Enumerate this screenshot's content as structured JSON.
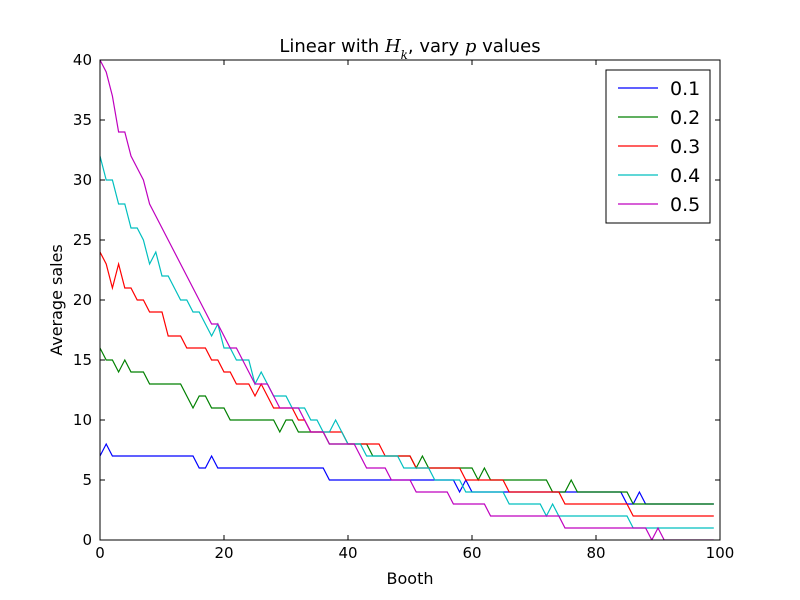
{
  "chart_data": {
    "type": "line",
    "title": {
      "prefix": "Linear with ",
      "var1": "H",
      "var1_sub": "k",
      "middle": ", vary ",
      "var2": "p",
      "suffix": " values"
    },
    "xlabel": "Booth",
    "ylabel": "Average sales",
    "xlim": [
      0,
      100
    ],
    "ylim": [
      0,
      40
    ],
    "xticks": [
      0,
      20,
      40,
      60,
      80,
      100
    ],
    "yticks": [
      0,
      5,
      10,
      15,
      20,
      25,
      30,
      35,
      40
    ],
    "grid": false,
    "legend": {
      "placement": "top-right"
    },
    "x": [
      0,
      1,
      2,
      3,
      4,
      5,
      6,
      7,
      8,
      9,
      10,
      11,
      12,
      13,
      14,
      15,
      16,
      17,
      18,
      19,
      20,
      21,
      22,
      23,
      24,
      25,
      26,
      27,
      28,
      29,
      30,
      31,
      32,
      33,
      34,
      35,
      36,
      37,
      38,
      39,
      40,
      41,
      42,
      43,
      44,
      45,
      46,
      47,
      48,
      49,
      50,
      51,
      52,
      53,
      54,
      55,
      56,
      57,
      58,
      59,
      60,
      61,
      62,
      63,
      64,
      65,
      66,
      67,
      68,
      69,
      70,
      71,
      72,
      73,
      74,
      75,
      76,
      77,
      78,
      79,
      80,
      81,
      82,
      83,
      84,
      85,
      86,
      87,
      88,
      89,
      90,
      91,
      92,
      93,
      94,
      95,
      96,
      97,
      98,
      99
    ],
    "series": [
      {
        "name": "0.1",
        "color": "#0000ff",
        "values": [
          7,
          8,
          7,
          7,
          7,
          7,
          7,
          7,
          7,
          7,
          7,
          7,
          7,
          7,
          7,
          7,
          6,
          6,
          7,
          6,
          6,
          6,
          6,
          6,
          6,
          6,
          6,
          6,
          6,
          6,
          6,
          6,
          6,
          6,
          6,
          6,
          6,
          5,
          5,
          5,
          5,
          5,
          5,
          5,
          5,
          5,
          5,
          5,
          5,
          5,
          5,
          5,
          5,
          5,
          5,
          5,
          5,
          5,
          4,
          5,
          4,
          4,
          4,
          4,
          4,
          4,
          4,
          4,
          4,
          4,
          4,
          4,
          4,
          4,
          4,
          4,
          4,
          4,
          4,
          4,
          4,
          4,
          4,
          4,
          4,
          3,
          3,
          4,
          3,
          3,
          3,
          3,
          3,
          3,
          3,
          3,
          3,
          3,
          3,
          3
        ]
      },
      {
        "name": "0.2",
        "color": "#008000",
        "values": [
          16,
          15,
          15,
          14,
          15,
          14,
          14,
          14,
          13,
          13,
          13,
          13,
          13,
          13,
          12,
          11,
          12,
          12,
          11,
          11,
          11,
          10,
          10,
          10,
          10,
          10,
          10,
          10,
          10,
          9,
          10,
          10,
          9,
          9,
          9,
          9,
          9,
          8,
          8,
          8,
          8,
          8,
          8,
          8,
          7,
          7,
          7,
          7,
          7,
          7,
          7,
          6,
          7,
          6,
          6,
          6,
          6,
          6,
          6,
          6,
          6,
          5,
          6,
          5,
          5,
          5,
          5,
          5,
          5,
          5,
          5,
          5,
          5,
          4,
          4,
          4,
          5,
          4,
          4,
          4,
          4,
          4,
          4,
          4,
          4,
          4,
          3,
          3,
          3,
          3,
          3,
          3,
          3,
          3,
          3,
          3,
          3,
          3,
          3,
          3
        ]
      },
      {
        "name": "0.3",
        "color": "#ff0000",
        "values": [
          24,
          23,
          21,
          23,
          21,
          21,
          20,
          20,
          19,
          19,
          19,
          17,
          17,
          17,
          16,
          16,
          16,
          16,
          15,
          15,
          14,
          14,
          13,
          13,
          13,
          12,
          13,
          12,
          11,
          11,
          11,
          11,
          10,
          10,
          9,
          9,
          9,
          9,
          9,
          9,
          8,
          8,
          8,
          8,
          8,
          8,
          7,
          7,
          7,
          7,
          7,
          6,
          6,
          6,
          6,
          6,
          6,
          6,
          6,
          5,
          5,
          5,
          5,
          5,
          5,
          5,
          4,
          4,
          4,
          4,
          4,
          4,
          4,
          4,
          4,
          3,
          3,
          3,
          3,
          3,
          3,
          3,
          3,
          3,
          3,
          3,
          2,
          2,
          2,
          2,
          2,
          2,
          2,
          2,
          2,
          2,
          2,
          2,
          2,
          2
        ]
      },
      {
        "name": "0.4",
        "color": "#00bfbf",
        "values": [
          32,
          30,
          30,
          28,
          28,
          26,
          26,
          25,
          23,
          24,
          22,
          22,
          21,
          20,
          20,
          19,
          19,
          18,
          17,
          18,
          16,
          16,
          15,
          15,
          15,
          13,
          14,
          13,
          12,
          12,
          12,
          11,
          11,
          11,
          10,
          10,
          9,
          9,
          10,
          9,
          8,
          8,
          8,
          7,
          7,
          7,
          7,
          7,
          7,
          6,
          6,
          6,
          6,
          6,
          5,
          5,
          5,
          5,
          5,
          4,
          4,
          4,
          4,
          4,
          4,
          4,
          3,
          3,
          3,
          3,
          3,
          3,
          2,
          3,
          2,
          2,
          2,
          2,
          2,
          2,
          2,
          2,
          2,
          2,
          2,
          2,
          1,
          1,
          1,
          1,
          1,
          1,
          1,
          1,
          1,
          1,
          1,
          1,
          1,
          1
        ]
      },
      {
        "name": "0.5",
        "color": "#bf00bf",
        "values": [
          40,
          39,
          37,
          34,
          34,
          32,
          31,
          30,
          28,
          27,
          26,
          25,
          24,
          23,
          22,
          21,
          20,
          19,
          18,
          18,
          17,
          16,
          16,
          15,
          14,
          13,
          13,
          13,
          12,
          11,
          11,
          11,
          11,
          10,
          9,
          9,
          9,
          8,
          8,
          8,
          8,
          8,
          7,
          6,
          6,
          6,
          6,
          5,
          5,
          5,
          5,
          4,
          4,
          4,
          4,
          4,
          4,
          3,
          3,
          3,
          3,
          3,
          3,
          2,
          2,
          2,
          2,
          2,
          2,
          2,
          2,
          2,
          2,
          2,
          2,
          1,
          1,
          1,
          1,
          1,
          1,
          1,
          1,
          1,
          1,
          1,
          1,
          1,
          1,
          0,
          1,
          0,
          0,
          0,
          0,
          0,
          0,
          0,
          0,
          0
        ]
      }
    ]
  }
}
